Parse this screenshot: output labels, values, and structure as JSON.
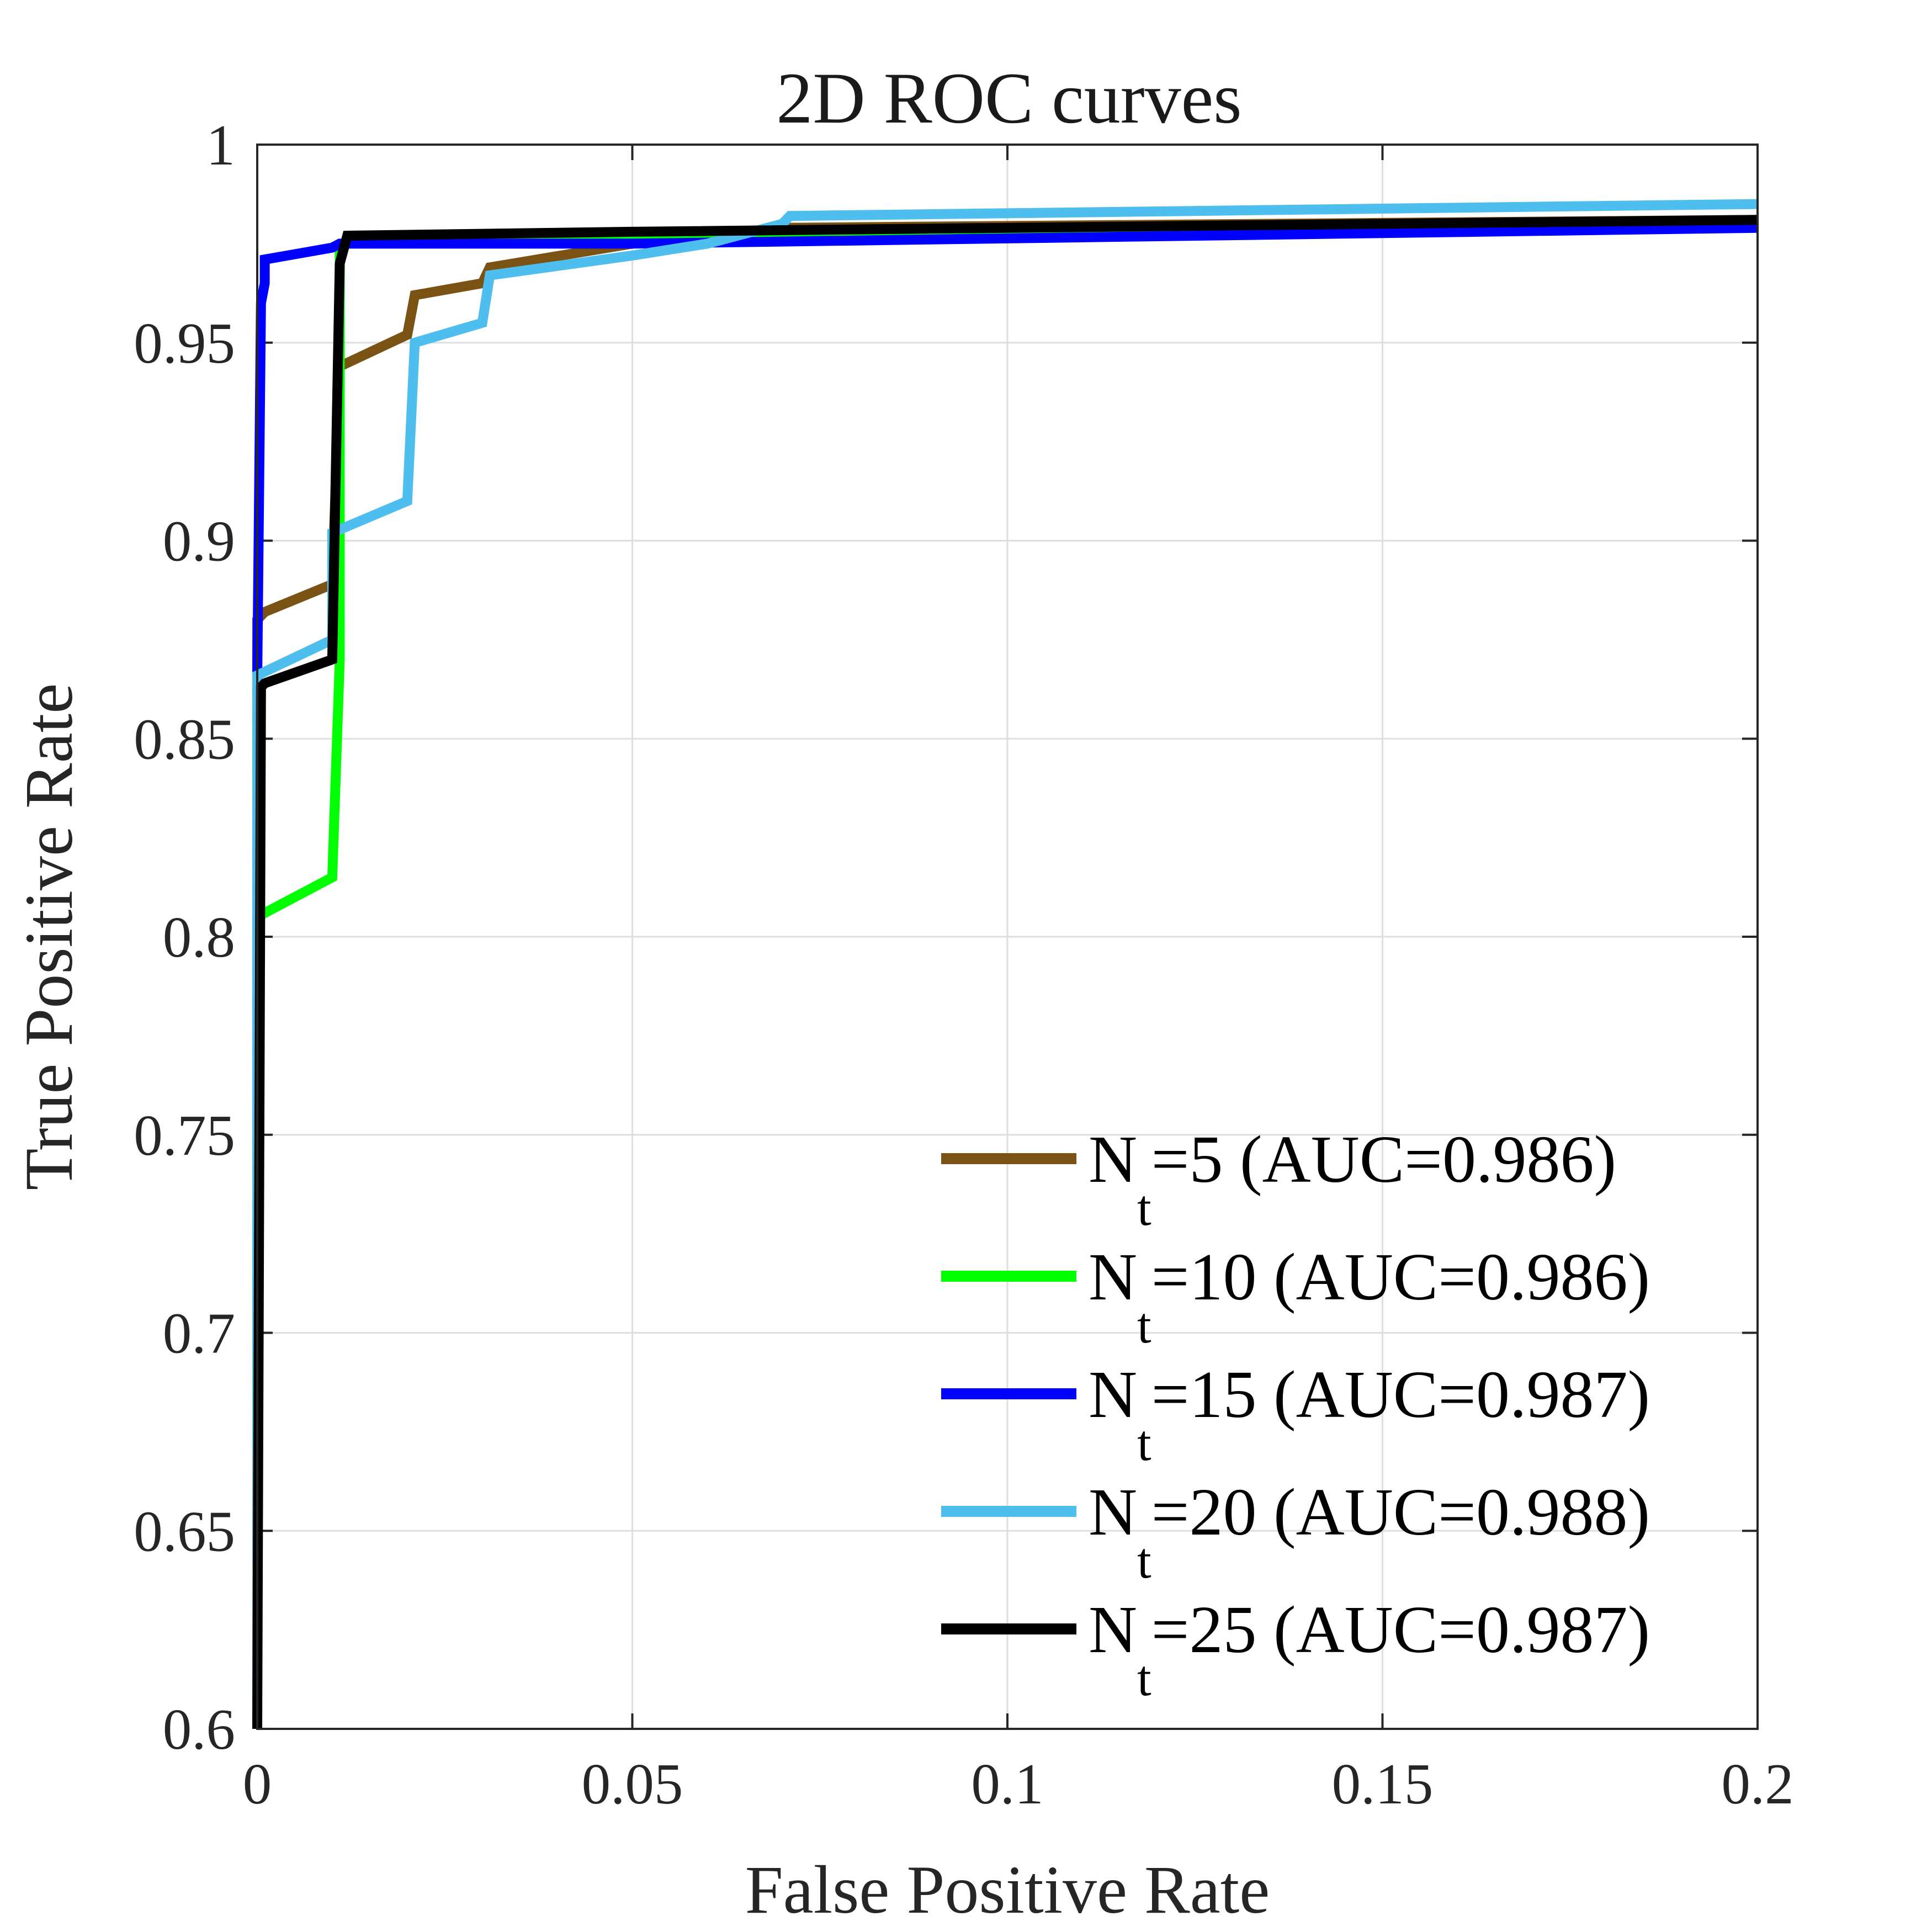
{
  "chart_data": {
    "type": "line",
    "title": "2D ROC curves",
    "xlabel": "False Positive Rate",
    "ylabel": "True Positive Rate",
    "xlim": [
      0,
      0.2
    ],
    "ylim": [
      0.6,
      1
    ],
    "xticks": [
      0,
      0.05,
      0.1,
      0.15,
      0.2
    ],
    "xtick_labels": [
      "0",
      "0.05",
      "0.1",
      "0.15",
      "0.2"
    ],
    "yticks": [
      0.6,
      0.65,
      0.7,
      0.75,
      0.8,
      0.85,
      0.9,
      0.95,
      1
    ],
    "ytick_labels": [
      "0.6",
      "0.65",
      "0.7",
      "0.75",
      "0.8",
      "0.85",
      "0.9",
      "0.95",
      "1"
    ],
    "grid": true,
    "legend_position": "bottom-right",
    "series": [
      {
        "name": "=5 (AUC=0.986)",
        "symbol": "N",
        "subscript": "t",
        "color": "#7a5213",
        "x": [
          0,
          0,
          0.001,
          0.01,
          0.011,
          0.02,
          0.021,
          0.03,
          0.031,
          0.05,
          0.07,
          0.2
        ],
        "y": [
          0.6,
          0.88,
          0.882,
          0.889,
          0.944,
          0.952,
          0.962,
          0.965,
          0.969,
          0.975,
          0.979,
          0.981
        ]
      },
      {
        "name": "=10 (AUC=0.986)",
        "symbol": "N",
        "subscript": "t",
        "color": "#00ff00",
        "x": [
          0,
          0,
          0.001,
          0.01,
          0.011,
          0.011,
          0.012,
          0.05,
          0.2
        ],
        "y": [
          0.6,
          0.805,
          0.806,
          0.815,
          0.87,
          0.974,
          0.975,
          0.977,
          0.98
        ]
      },
      {
        "name": "=15 (AUC=0.987)",
        "symbol": "N",
        "subscript": "t",
        "color": "#0000ff",
        "x": [
          0,
          0,
          0.0005,
          0.001,
          0.001,
          0.01,
          0.011,
          0.05,
          0.2
        ],
        "y": [
          0.6,
          0.865,
          0.96,
          0.965,
          0.971,
          0.974,
          0.975,
          0.975,
          0.979
        ]
      },
      {
        "name": "=20 (AUC=0.988)",
        "symbol": "N",
        "subscript": "t",
        "color": "#4dbeee",
        "x": [
          0,
          0,
          0.01,
          0.01,
          0.02,
          0.021,
          0.03,
          0.031,
          0.05,
          0.06,
          0.07,
          0.071,
          0.2
        ],
        "y": [
          0.6,
          0.866,
          0.875,
          0.902,
          0.91,
          0.95,
          0.955,
          0.967,
          0.972,
          0.975,
          0.98,
          0.982,
          0.985
        ]
      },
      {
        "name": "=25 (AUC=0.987)",
        "symbol": "N",
        "subscript": "t",
        "color": "#000000",
        "x": [
          0,
          0.0005,
          0.001,
          0.01,
          0.011,
          0.012,
          0.05,
          0.2
        ],
        "y": [
          0.6,
          0.863,
          0.864,
          0.87,
          0.97,
          0.977,
          0.978,
          0.981
        ]
      }
    ]
  }
}
